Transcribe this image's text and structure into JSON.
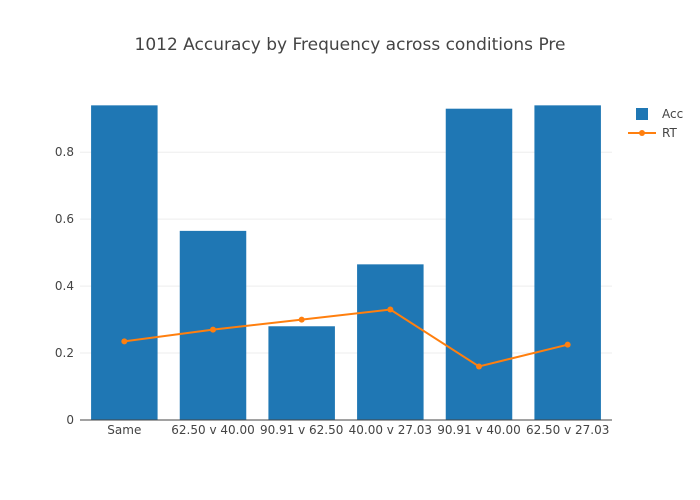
{
  "chart_data": {
    "type": "bar",
    "title": "1012 Accuracy by Frequency across conditions Pre",
    "xlabel": "",
    "ylabel": "",
    "categories": [
      "Same",
      "62.50 v 40.00",
      "90.91 v 62.50",
      "40.00 v 27.03",
      "90.91 v 40.00",
      "62.50 v 27.03"
    ],
    "ylim": [
      0,
      0.95
    ],
    "yticks": [
      0,
      0.2,
      0.4,
      0.6,
      0.8
    ],
    "ytick_labels": [
      "0",
      "0.2",
      "0.4",
      "0.6",
      "0.8"
    ],
    "grid": true,
    "legend_position": "top-right",
    "series": [
      {
        "name": "Acc",
        "type": "bar",
        "color": "#1f77b4",
        "values": [
          0.94,
          0.565,
          0.28,
          0.465,
          0.93,
          0.94
        ]
      },
      {
        "name": "RT",
        "type": "line",
        "color": "#ff7f0e",
        "values": [
          0.235,
          0.27,
          0.3,
          0.33,
          0.16,
          0.225
        ]
      }
    ]
  }
}
